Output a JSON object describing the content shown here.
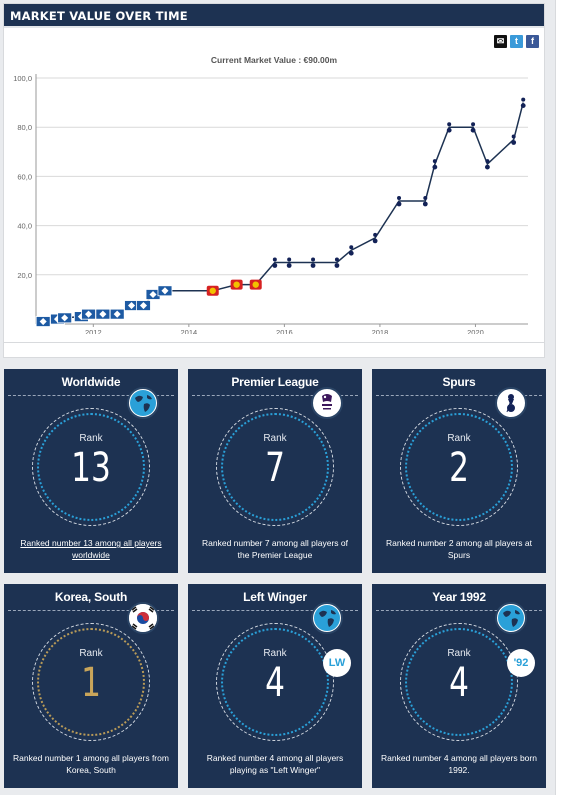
{
  "chart_section": {
    "header": "MARKET VALUE OVER TIME",
    "current_value": "Current Market Value : €90.00m",
    "share": {
      "mail": "✉",
      "twitter": "t",
      "facebook": "f"
    }
  },
  "chart_data": {
    "type": "line",
    "title": "Current Market Value : €90.00m",
    "ylim": [
      0,
      100
    ],
    "xlim": [
      2010.8,
      2021.1
    ],
    "y_ticks": [
      "100,0",
      "80,0",
      "60,0",
      "40,0",
      "20,0"
    ],
    "y_tick_values": [
      100,
      80,
      60,
      40,
      20
    ],
    "x_ticks": [
      "2012",
      "2014",
      "2016",
      "2018",
      "2020"
    ],
    "x_tick_values": [
      2012,
      2014,
      2016,
      2018,
      2020
    ],
    "grid": true,
    "legend": "none",
    "series": [
      {
        "values": [
          {
            "x": 2010.95,
            "y": 1.0
          },
          {
            "x": 2011.25,
            "y": 2.0
          },
          {
            "x": 2011.4,
            "y": 2.5
          },
          {
            "x": 2011.75,
            "y": 3.0
          },
          {
            "x": 2011.9,
            "y": 4.0
          },
          {
            "x": 2012.2,
            "y": 4.0
          },
          {
            "x": 2012.5,
            "y": 4.0
          },
          {
            "x": 2012.8,
            "y": 7.5
          },
          {
            "x": 2013.05,
            "y": 7.5
          },
          {
            "x": 2013.25,
            "y": 12.0
          },
          {
            "x": 2013.5,
            "y": 13.5
          },
          {
            "x": 2014.5,
            "y": 13.5
          },
          {
            "x": 2015.0,
            "y": 16.0
          },
          {
            "x": 2015.4,
            "y": 16.0
          },
          {
            "x": 2015.8,
            "y": 25.0
          },
          {
            "x": 2016.1,
            "y": 25.0
          },
          {
            "x": 2016.6,
            "y": 25.0
          },
          {
            "x": 2017.1,
            "y": 25.0
          },
          {
            "x": 2017.4,
            "y": 30.0
          },
          {
            "x": 2017.9,
            "y": 35.0
          },
          {
            "x": 2018.4,
            "y": 50.0
          },
          {
            "x": 2018.95,
            "y": 50.0
          },
          {
            "x": 2019.15,
            "y": 65.0
          },
          {
            "x": 2019.45,
            "y": 80.0
          },
          {
            "x": 2019.95,
            "y": 80.0
          },
          {
            "x": 2020.25,
            "y": 65.0
          },
          {
            "x": 2020.8,
            "y": 75.0
          },
          {
            "x": 2021.0,
            "y": 90.0
          }
        ],
        "marker_clubs": [
          "hsv",
          "hsv",
          "hsv",
          "hsv",
          "hsv",
          "hsv",
          "hsv",
          "hsv",
          "hsv",
          "hsv",
          "hsv",
          "b04",
          "b04",
          "b04",
          "tot",
          "tot",
          "tot",
          "tot",
          "tot",
          "tot",
          "tot",
          "tot",
          "tot",
          "tot",
          "tot",
          "tot",
          "tot",
          "tot"
        ]
      }
    ],
    "line_color": "#1d3252"
  },
  "club_colors": {
    "hsv": "#1d5aa3",
    "b04": "#d62222",
    "tot": "#132257"
  },
  "cards": [
    {
      "title": "Worldwide",
      "rank_label": "Rank",
      "rank": "13",
      "description": "Ranked number 13 among all players worldwide",
      "badge": "globe-icon",
      "badge2": "",
      "gold": false,
      "underline": true
    },
    {
      "title": "Premier League",
      "rank_label": "Rank",
      "rank": "7",
      "description": "Ranked number 7 among all players of the Premier League",
      "badge": "premier-league-logo",
      "badge2": "",
      "gold": false,
      "underline": false
    },
    {
      "title": "Spurs",
      "rank_label": "Rank",
      "rank": "2",
      "description": "Ranked number 2 among all players at Spurs",
      "badge": "spurs-crest",
      "badge2": "",
      "gold": false,
      "underline": false
    },
    {
      "title": "Korea, South",
      "rank_label": "Rank",
      "rank": "1",
      "description": "Ranked number 1 among all players from Korea, South",
      "badge": "korea-flag-icon",
      "badge2": "",
      "gold": true,
      "underline": false
    },
    {
      "title": "Left Winger",
      "rank_label": "Rank",
      "rank": "4",
      "description": "Ranked number 4 among all players playing as \"Left Winger\"",
      "badge": "globe-icon",
      "badge2": "LW",
      "gold": false,
      "underline": false
    },
    {
      "title": "Year 1992",
      "rank_label": "Rank",
      "rank": "4",
      "description": "Ranked number 4 among all players born 1992.",
      "badge": "globe-icon",
      "badge2": "'92",
      "gold": false,
      "underline": false
    }
  ]
}
